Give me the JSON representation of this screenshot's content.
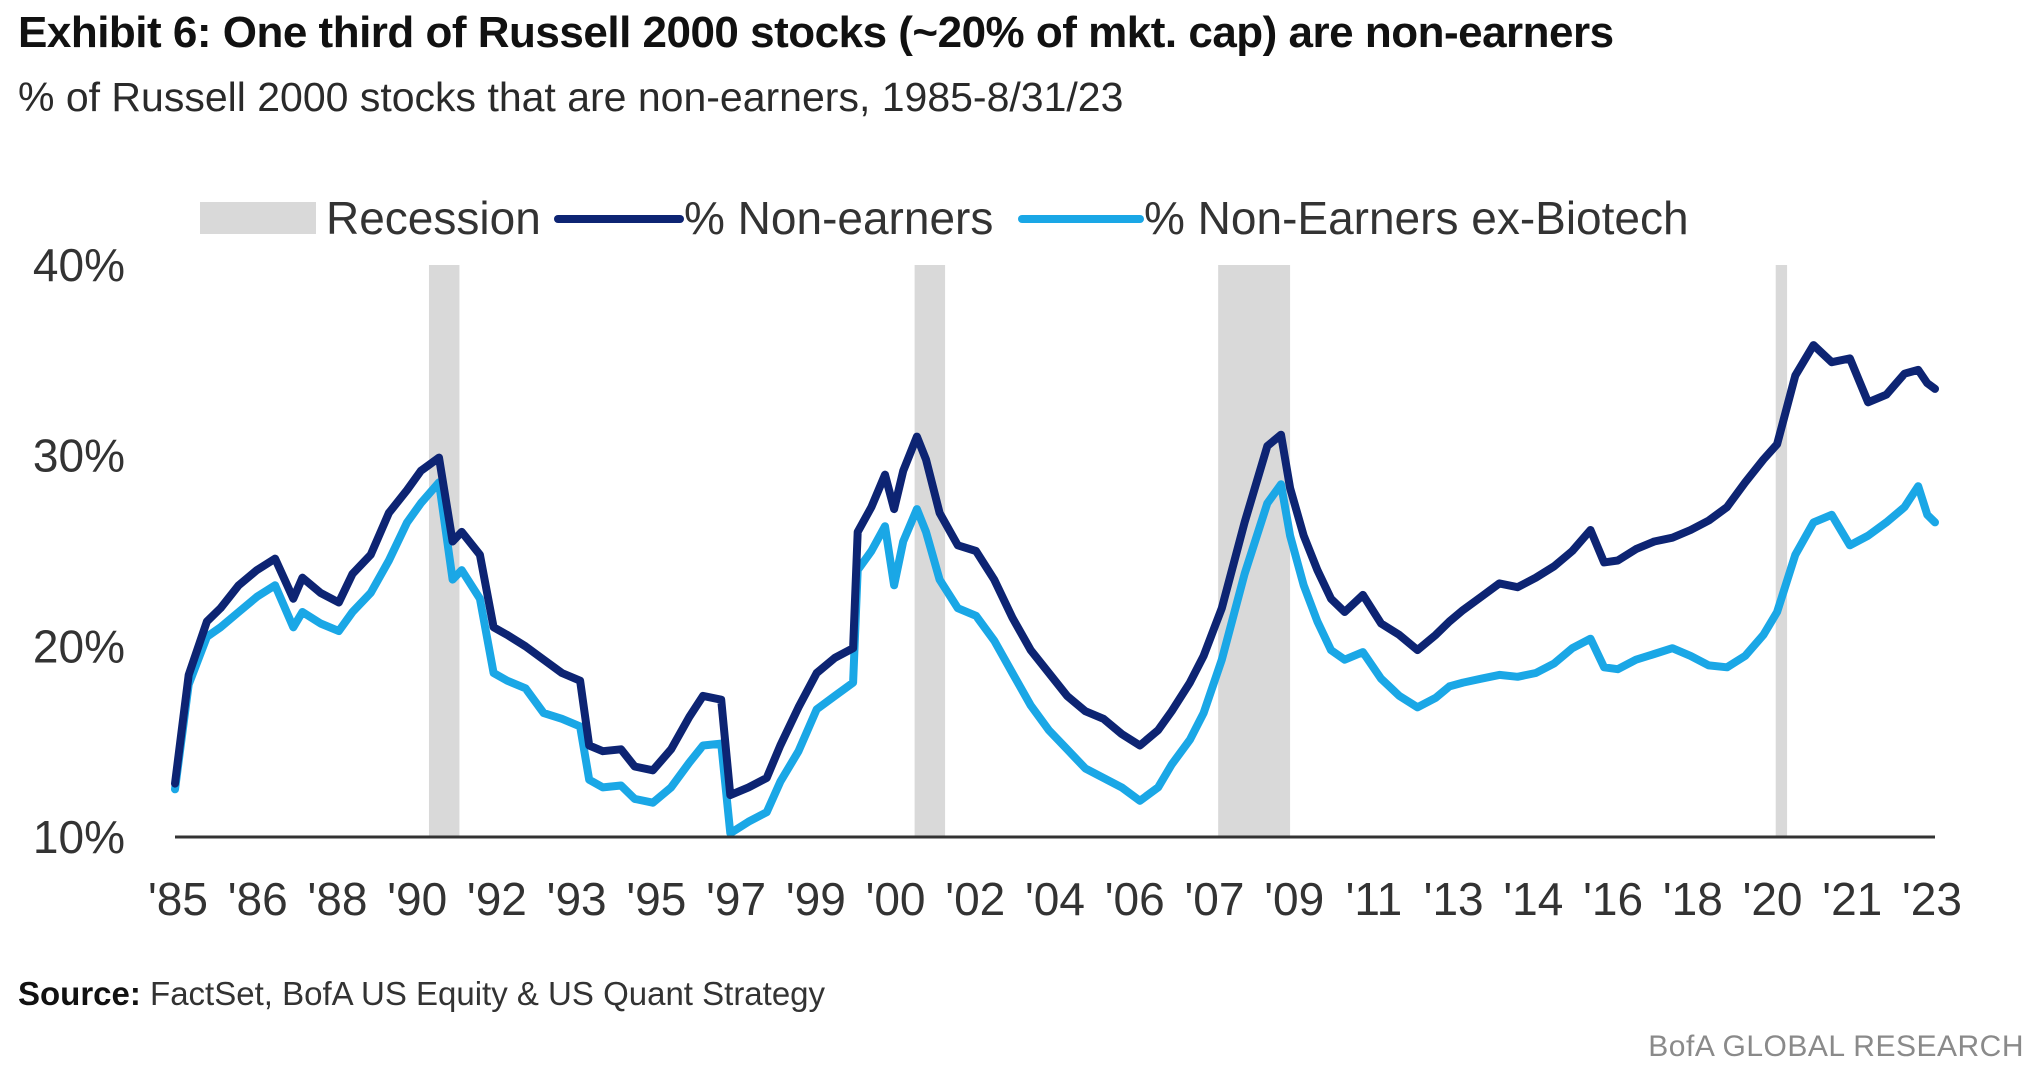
{
  "title": "Exhibit 6: One third of Russell 2000 stocks (~20% of mkt. cap) are non-earners",
  "subtitle": "% of Russell 2000 stocks that are non-earners, 1985-8/31/23",
  "source_label": "Source:",
  "source_text": "FactSet, BofA US Equity & US Quant Strategy",
  "brand": "BofA GLOBAL RESEARCH",
  "colors": {
    "non_earners": "#0d2473",
    "ex_biotech": "#1aa7e6",
    "recession": "#d9d9d9",
    "axis": "#333333"
  },
  "chart_data": {
    "type": "line",
    "x_unit": "year",
    "xlim": [
      1985,
      2023.67
    ],
    "ylim": [
      10,
      40
    ],
    "y_ticks": [
      10,
      20,
      30,
      40
    ],
    "y_tick_labels": [
      "10%",
      "20%",
      "30%",
      "40%"
    ],
    "x_tick_labels": [
      "'85",
      "'86",
      "'88",
      "'90",
      "'92",
      "'93",
      "'95",
      "'97",
      "'99",
      "'00",
      "'02",
      "'04",
      "'06",
      "'07",
      "'09",
      "'11",
      "'13",
      "'14",
      "'16",
      "'18",
      "'20",
      "'21",
      "'23"
    ],
    "legend": {
      "position": "top",
      "entries": [
        "Recession",
        "% Non-earners",
        "% Non-Earners ex-Biotech"
      ]
    },
    "recessions": [
      {
        "start": 1990.58,
        "end": 1991.25
      },
      {
        "start": 2001.25,
        "end": 2001.92
      },
      {
        "start": 2007.92,
        "end": 2009.5
      },
      {
        "start": 2020.17,
        "end": 2020.42
      }
    ],
    "series": [
      {
        "name": "% Non-earners",
        "x": [
          1985.0,
          1985.3,
          1985.7,
          1986.0,
          1986.4,
          1986.8,
          1987.2,
          1987.6,
          1987.8,
          1988.2,
          1988.6,
          1988.9,
          1989.3,
          1989.7,
          1990.1,
          1990.4,
          1990.8,
          1991.1,
          1991.3,
          1991.7,
          1992.0,
          1992.3,
          1992.7,
          1993.1,
          1993.5,
          1993.9,
          1994.1,
          1994.4,
          1994.8,
          1995.1,
          1995.5,
          1995.9,
          1996.3,
          1996.6,
          1997.0,
          1997.2,
          1997.6,
          1998.0,
          1998.3,
          1998.7,
          1999.1,
          1999.5,
          1999.9,
          2000.0,
          2000.3,
          2000.6,
          2000.8,
          2001.0,
          2001.3,
          2001.5,
          2001.8,
          2002.2,
          2002.6,
          2003.0,
          2003.4,
          2003.8,
          2004.2,
          2004.6,
          2005.0,
          2005.4,
          2005.8,
          2006.2,
          2006.6,
          2006.9,
          2007.3,
          2007.6,
          2008.0,
          2008.5,
          2009.0,
          2009.3,
          2009.5,
          2009.8,
          2010.1,
          2010.4,
          2010.7,
          2011.1,
          2011.5,
          2011.9,
          2012.3,
          2012.7,
          2013.0,
          2013.3,
          2013.7,
          2014.1,
          2014.5,
          2014.9,
          2015.3,
          2015.7,
          2016.1,
          2016.4,
          2016.7,
          2017.1,
          2017.5,
          2017.9,
          2018.3,
          2018.7,
          2019.1,
          2019.5,
          2019.9,
          2020.2,
          2020.6,
          2021.0,
          2021.4,
          2021.8,
          2022.2,
          2022.6,
          2023.0,
          2023.3,
          2023.5,
          2023.67
        ],
        "values": [
          12.8,
          18.5,
          21.3,
          22.0,
          23.2,
          24.0,
          24.6,
          22.5,
          23.6,
          22.8,
          22.3,
          23.8,
          24.8,
          27.0,
          28.2,
          29.2,
          29.9,
          25.5,
          26.0,
          24.8,
          21.0,
          20.6,
          20.0,
          19.3,
          18.6,
          18.2,
          14.8,
          14.5,
          14.6,
          13.7,
          13.5,
          14.6,
          16.3,
          17.4,
          17.2,
          12.2,
          12.6,
          13.1,
          14.8,
          16.8,
          18.6,
          19.4,
          19.9,
          26.0,
          27.3,
          29.0,
          27.2,
          29.2,
          31.0,
          29.8,
          27.0,
          25.3,
          25.0,
          23.5,
          21.5,
          19.8,
          18.6,
          17.4,
          16.6,
          16.2,
          15.4,
          14.8,
          15.6,
          16.6,
          18.1,
          19.5,
          22.0,
          26.5,
          30.5,
          31.1,
          28.3,
          25.8,
          24.0,
          22.5,
          21.8,
          22.7,
          21.2,
          20.6,
          19.8,
          20.6,
          21.3,
          21.9,
          22.6,
          23.3,
          23.1,
          23.6,
          24.2,
          25.0,
          26.1,
          24.4,
          24.5,
          25.1,
          25.5,
          25.7,
          26.1,
          26.6,
          27.3,
          28.6,
          29.8,
          30.6,
          34.2,
          35.8,
          34.9,
          35.1,
          32.8,
          33.2,
          34.3,
          34.5,
          33.8,
          33.5
        ]
      },
      {
        "name": "% Non-Earners ex-Biotech",
        "x": [
          1985.0,
          1985.3,
          1985.7,
          1986.0,
          1986.4,
          1986.8,
          1987.2,
          1987.6,
          1987.8,
          1988.2,
          1988.6,
          1988.9,
          1989.3,
          1989.7,
          1990.1,
          1990.4,
          1990.8,
          1991.1,
          1991.3,
          1991.7,
          1992.0,
          1992.3,
          1992.7,
          1993.1,
          1993.5,
          1993.9,
          1994.1,
          1994.4,
          1994.8,
          1995.1,
          1995.5,
          1995.9,
          1996.3,
          1996.6,
          1997.0,
          1997.2,
          1997.6,
          1998.0,
          1998.3,
          1998.7,
          1999.1,
          1999.5,
          1999.9,
          2000.0,
          2000.3,
          2000.6,
          2000.8,
          2001.0,
          2001.3,
          2001.5,
          2001.8,
          2002.2,
          2002.6,
          2003.0,
          2003.4,
          2003.8,
          2004.2,
          2004.6,
          2005.0,
          2005.4,
          2005.8,
          2006.2,
          2006.6,
          2006.9,
          2007.3,
          2007.6,
          2008.0,
          2008.5,
          2009.0,
          2009.3,
          2009.5,
          2009.8,
          2010.1,
          2010.4,
          2010.7,
          2011.1,
          2011.5,
          2011.9,
          2012.3,
          2012.7,
          2013.0,
          2013.3,
          2013.7,
          2014.1,
          2014.5,
          2014.9,
          2015.3,
          2015.7,
          2016.1,
          2016.4,
          2016.7,
          2017.1,
          2017.5,
          2017.9,
          2018.3,
          2018.7,
          2019.1,
          2019.5,
          2019.9,
          2020.2,
          2020.6,
          2021.0,
          2021.4,
          2021.8,
          2022.2,
          2022.6,
          2023.0,
          2023.3,
          2023.5,
          2023.67
        ],
        "values": [
          12.5,
          18.0,
          20.5,
          21.0,
          21.8,
          22.6,
          23.2,
          21.0,
          21.8,
          21.2,
          20.8,
          21.8,
          22.8,
          24.5,
          26.5,
          27.5,
          28.6,
          23.5,
          24.0,
          22.5,
          18.6,
          18.2,
          17.8,
          16.5,
          16.2,
          15.8,
          13.0,
          12.6,
          12.7,
          12.0,
          11.8,
          12.6,
          13.9,
          14.8,
          14.9,
          10.2,
          10.8,
          11.3,
          12.9,
          14.5,
          16.7,
          17.4,
          18.1,
          24.0,
          25.0,
          26.3,
          23.2,
          25.5,
          27.2,
          26.0,
          23.5,
          22.0,
          21.6,
          20.3,
          18.6,
          16.9,
          15.6,
          14.6,
          13.6,
          13.1,
          12.6,
          11.9,
          12.6,
          13.8,
          15.1,
          16.5,
          19.3,
          23.8,
          27.5,
          28.5,
          25.8,
          23.2,
          21.3,
          19.8,
          19.3,
          19.7,
          18.3,
          17.4,
          16.8,
          17.3,
          17.9,
          18.1,
          18.3,
          18.5,
          18.4,
          18.6,
          19.1,
          19.9,
          20.4,
          18.9,
          18.8,
          19.3,
          19.6,
          19.9,
          19.5,
          19.0,
          18.9,
          19.5,
          20.6,
          21.8,
          24.8,
          26.5,
          26.9,
          25.3,
          25.8,
          26.5,
          27.3,
          28.4,
          26.9,
          26.5
        ]
      }
    ]
  }
}
